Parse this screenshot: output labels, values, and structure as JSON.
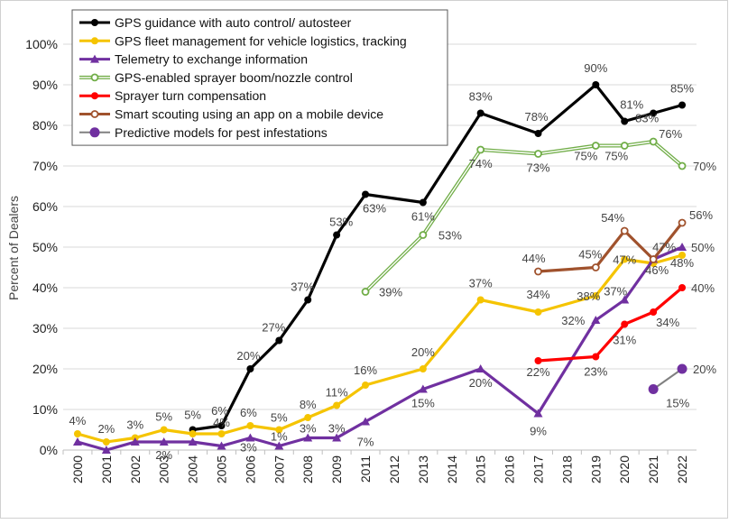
{
  "chart_data": {
    "type": "line",
    "ylabel": "Percent of Dealers",
    "xlabel": "",
    "ylim": [
      0,
      100
    ],
    "y_ticks": [
      "0%",
      "10%",
      "20%",
      "30%",
      "40%",
      "50%",
      "60%",
      "70%",
      "80%",
      "90%",
      "100%"
    ],
    "categories": [
      "2000",
      "2001",
      "2002",
      "2003",
      "2004",
      "2005",
      "2006",
      "2007",
      "2008",
      "2009",
      "2011",
      "2012",
      "2013",
      "2014",
      "2015",
      "2016",
      "2017",
      "2018",
      "2019",
      "2020",
      "2021",
      "2022"
    ],
    "grid": "horizontal",
    "legend_position": "top-left",
    "series": [
      {
        "name": "GPS guidance with auto control/ autosteer",
        "color": "#000000",
        "marker": "circle-filled",
        "points": [
          [
            "2004",
            5
          ],
          [
            "2005",
            6
          ],
          [
            "2006",
            20
          ],
          [
            "2007",
            27
          ],
          [
            "2008",
            37
          ],
          [
            "2009",
            53
          ],
          [
            "2011",
            63
          ],
          [
            "2013",
            61
          ],
          [
            "2015",
            83
          ],
          [
            "2017",
            78
          ],
          [
            "2019",
            90
          ],
          [
            "2020",
            81
          ],
          [
            "2021",
            83
          ],
          [
            "2022",
            85
          ]
        ]
      },
      {
        "name": "GPS fleet management for vehicle logistics, tracking",
        "color": "#f5c400",
        "marker": "circle-filled",
        "points": [
          [
            "2000",
            4
          ],
          [
            "2001",
            2
          ],
          [
            "2002",
            3
          ],
          [
            "2003",
            5
          ],
          [
            "2004",
            4
          ],
          [
            "2005",
            4
          ],
          [
            "2006",
            6
          ],
          [
            "2007",
            5
          ],
          [
            "2008",
            8
          ],
          [
            "2009",
            11
          ],
          [
            "2011",
            16
          ],
          [
            "2013",
            20
          ],
          [
            "2015",
            37
          ],
          [
            "2017",
            34
          ],
          [
            "2019",
            38
          ],
          [
            "2020",
            47
          ],
          [
            "2021",
            46
          ],
          [
            "2022",
            48
          ]
        ]
      },
      {
        "name": "Telemetry to exchange information",
        "color": "#7030a0",
        "marker": "triangle",
        "points": [
          [
            "2000",
            2
          ],
          [
            "2001",
            0
          ],
          [
            "2002",
            2
          ],
          [
            "2003",
            2
          ],
          [
            "2004",
            2
          ],
          [
            "2005",
            1
          ],
          [
            "2006",
            3
          ],
          [
            "2007",
            1
          ],
          [
            "2008",
            3
          ],
          [
            "2009",
            3
          ],
          [
            "2011",
            7
          ],
          [
            "2013",
            15
          ],
          [
            "2015",
            20
          ],
          [
            "2017",
            9
          ],
          [
            "2019",
            32
          ],
          [
            "2020",
            37
          ],
          [
            "2021",
            47
          ],
          [
            "2022",
            50
          ]
        ]
      },
      {
        "name": "GPS-enabled sprayer boom/nozzle control",
        "color": "#70ad47",
        "marker": "circle-open",
        "points": [
          [
            "2011",
            39
          ],
          [
            "2013",
            53
          ],
          [
            "2015",
            74
          ],
          [
            "2017",
            73
          ],
          [
            "2019",
            75
          ],
          [
            "2020",
            75
          ],
          [
            "2021",
            76
          ],
          [
            "2022",
            70
          ]
        ]
      },
      {
        "name": "Sprayer turn compensation",
        "color": "#ff0000",
        "marker": "circle-filled",
        "points": [
          [
            "2017",
            22
          ],
          [
            "2019",
            23
          ],
          [
            "2020",
            31
          ],
          [
            "2021",
            34
          ],
          [
            "2022",
            40
          ]
        ]
      },
      {
        "name": "Smart scouting using an app on a mobile device",
        "color": "#a0522d",
        "marker": "circle-open",
        "points": [
          [
            "2017",
            44
          ],
          [
            "2019",
            45
          ],
          [
            "2020",
            54
          ],
          [
            "2021",
            47
          ],
          [
            "2022",
            56
          ]
        ]
      },
      {
        "name": "Predictive models for pest infestations",
        "color": "#7030a0",
        "marker": "circle-large",
        "line_color": "#808080",
        "points": [
          [
            "2021",
            15
          ],
          [
            "2022",
            20
          ]
        ]
      }
    ],
    "data_labels": [
      {
        "x": "2000",
        "y": 4,
        "text": "4%"
      },
      {
        "x": "2001",
        "y": 2,
        "text": "2%"
      },
      {
        "x": "2002",
        "y": 3,
        "text": "3%"
      },
      {
        "x": "2003",
        "y": 5,
        "text": "5%"
      },
      {
        "x": "2004",
        "y": 5,
        "text": "5%"
      },
      {
        "x": "2005",
        "y": 6,
        "text": "6%"
      },
      {
        "x": "2005",
        "y": 4,
        "text": "4%"
      },
      {
        "x": "2003",
        "y": 2,
        "text": "2%"
      },
      {
        "x": "2006",
        "y": 20,
        "text": "20%"
      },
      {
        "x": "2006",
        "y": 6,
        "text": "6%"
      },
      {
        "x": "2006",
        "y": 3,
        "text": "3%"
      },
      {
        "x": "2007",
        "y": 27,
        "text": "27%"
      },
      {
        "x": "2007",
        "y": 5,
        "text": "5%"
      },
      {
        "x": "2007",
        "y": 1,
        "text": "1%"
      },
      {
        "x": "2008",
        "y": 37,
        "text": "37%"
      },
      {
        "x": "2008",
        "y": 8,
        "text": "8%"
      },
      {
        "x": "2008",
        "y": 3,
        "text": "3%"
      },
      {
        "x": "2009",
        "y": 53,
        "text": "53%"
      },
      {
        "x": "2009",
        "y": 11,
        "text": "11%"
      },
      {
        "x": "2009",
        "y": 3,
        "text": "3%"
      },
      {
        "x": "2011",
        "y": 63,
        "text": "63%"
      },
      {
        "x": "2011",
        "y": 39,
        "text": "39%"
      },
      {
        "x": "2011",
        "y": 16,
        "text": "16%"
      },
      {
        "x": "2011",
        "y": 7,
        "text": "7%"
      },
      {
        "x": "2013",
        "y": 61,
        "text": "61%"
      },
      {
        "x": "2013",
        "y": 53,
        "text": "53%"
      },
      {
        "x": "2013",
        "y": 20,
        "text": "20%"
      },
      {
        "x": "2013",
        "y": 15,
        "text": "15%"
      },
      {
        "x": "2015",
        "y": 83,
        "text": "83%"
      },
      {
        "x": "2015",
        "y": 74,
        "text": "74%"
      },
      {
        "x": "2015",
        "y": 37,
        "text": "37%"
      },
      {
        "x": "2015",
        "y": 20,
        "text": "20%"
      },
      {
        "x": "2017",
        "y": 78,
        "text": "78%"
      },
      {
        "x": "2017",
        "y": 73,
        "text": "73%"
      },
      {
        "x": "2017",
        "y": 44,
        "text": "44%"
      },
      {
        "x": "2017",
        "y": 34,
        "text": "34%"
      },
      {
        "x": "2017",
        "y": 22,
        "text": "22%"
      },
      {
        "x": "2017",
        "y": 9,
        "text": "9%"
      },
      {
        "x": "2019",
        "y": 90,
        "text": "90%"
      },
      {
        "x": "2019",
        "y": 75,
        "text": "75%"
      },
      {
        "x": "2019",
        "y": 45,
        "text": "45%"
      },
      {
        "x": "2019",
        "y": 38,
        "text": "38%"
      },
      {
        "x": "2019",
        "y": 32,
        "text": "32%"
      },
      {
        "x": "2019",
        "y": 23,
        "text": "23%"
      },
      {
        "x": "2020",
        "y": 81,
        "text": "81%"
      },
      {
        "x": "2020",
        "y": 75,
        "text": "75%"
      },
      {
        "x": "2020",
        "y": 54,
        "text": "54%"
      },
      {
        "x": "2020",
        "y": 47,
        "text": "47%"
      },
      {
        "x": "2020",
        "y": 37,
        "text": "37%"
      },
      {
        "x": "2020",
        "y": 31,
        "text": "31%"
      },
      {
        "x": "2021",
        "y": 83,
        "text": "83%"
      },
      {
        "x": "2021",
        "y": 76,
        "text": "76%"
      },
      {
        "x": "2021",
        "y": 47,
        "text": "47%"
      },
      {
        "x": "2021",
        "y": 46,
        "text": "46%"
      },
      {
        "x": "2021",
        "y": 34,
        "text": "34%"
      },
      {
        "x": "2021",
        "y": 15,
        "text": "15%"
      },
      {
        "x": "2022",
        "y": 85,
        "text": "85%"
      },
      {
        "x": "2022",
        "y": 70,
        "text": "70%"
      },
      {
        "x": "2022",
        "y": 56,
        "text": "56%"
      },
      {
        "x": "2022",
        "y": 50,
        "text": "50%"
      },
      {
        "x": "2022",
        "y": 48,
        "text": "48%"
      },
      {
        "x": "2022",
        "y": 40,
        "text": "40%"
      },
      {
        "x": "2022",
        "y": 20,
        "text": "20%"
      }
    ]
  }
}
